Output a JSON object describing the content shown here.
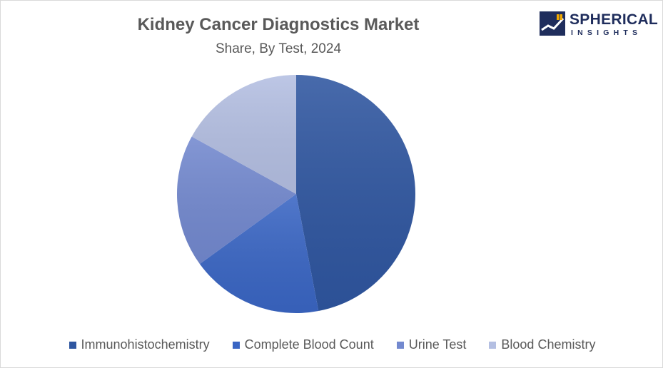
{
  "chart": {
    "title": "Kidney Cancer Diagnostics Market",
    "subtitle": "Share, By Test, 2024"
  },
  "logo": {
    "name": "SPHERICAL",
    "tagline": "INSIGHTS"
  },
  "chart_data": {
    "type": "pie",
    "title": "Kidney Cancer Diagnostics Market",
    "subtitle": "Share, By Test, 2024",
    "legend_position": "bottom",
    "categories": [
      "Immunohistochemistry",
      "Complete Blood Count",
      "Urine Test",
      "Blood Chemistry"
    ],
    "values": [
      47,
      18,
      18,
      17
    ],
    "colors": [
      "#2f56a0",
      "#3a66c4",
      "#7389cf",
      "#b4bfe2"
    ]
  }
}
